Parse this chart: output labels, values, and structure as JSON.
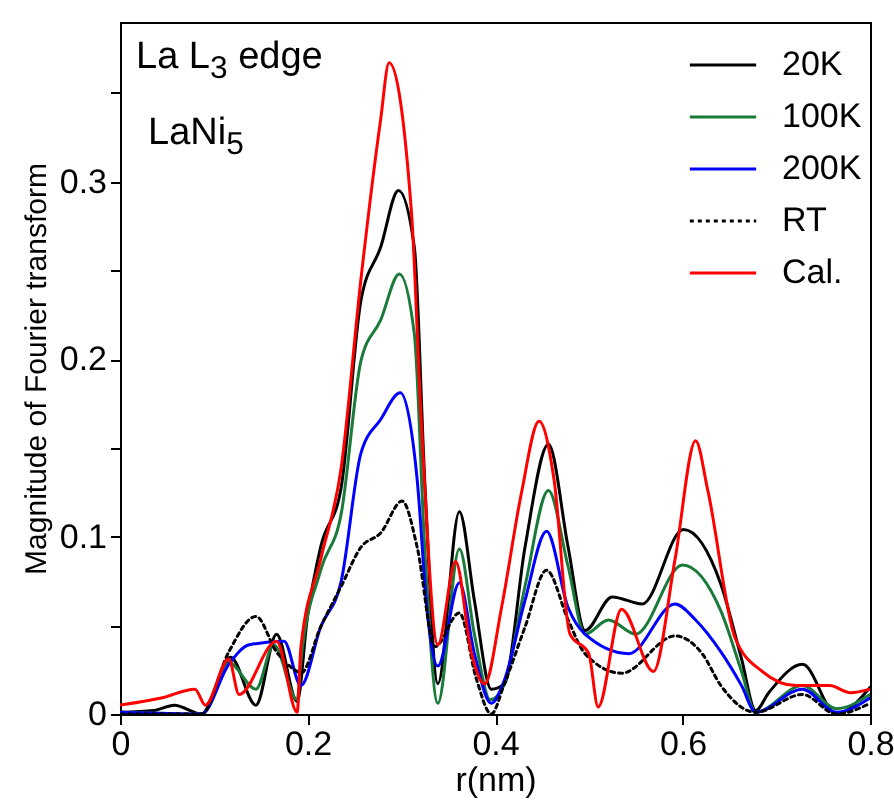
{
  "chart_data": {
    "type": "line",
    "xlabel": "r(nm)",
    "ylabel": "Magnitude of Fourier transform",
    "annotations": [
      "La L$_{3}$ edge",
      "LaNi$_{5}$"
    ],
    "xlim": [
      0,
      0.8
    ],
    "xticks": [
      0,
      0.2,
      0.4,
      0.6,
      0.8
    ],
    "ylim": [
      0,
      0.39
    ],
    "yticks": [
      0,
      {
        "value": 0.05,
        "label": null
      },
      0.1,
      {
        "value": 0.15,
        "label": null
      },
      0.2,
      {
        "value": 0.25,
        "label": null
      },
      0.3,
      {
        "value": 0.35,
        "label": null
      }
    ],
    "grid": false,
    "legend": "top right",
    "series": [
      {
        "name": "20K",
        "color": "#000000",
        "line_style": "solid",
        "x": [
          0,
          0.036,
          0.058,
          0.087,
          0.118,
          0.145,
          0.167,
          0.189,
          0.2,
          0.214,
          0.236,
          0.257,
          0.278,
          0.297,
          0.314,
          0.325,
          0.339,
          0.362,
          0.378,
          0.396,
          0.41,
          0.432,
          0.457,
          0.478,
          0.496,
          0.525,
          0.557,
          0.601,
          0.641,
          0.663,
          0.678,
          0.692,
          0.728,
          0.764,
          0.8
        ],
        "values": [
          0.001,
          0.002,
          0.005,
          0.0,
          0.032,
          0.005,
          0.045,
          0.007,
          0.055,
          0.094,
          0.128,
          0.233,
          0.263,
          0.295,
          0.263,
          0.132,
          0.017,
          0.114,
          0.064,
          0.014,
          0.017,
          0.094,
          0.152,
          0.094,
          0.047,
          0.066,
          0.062,
          0.104,
          0.073,
          0.031,
          0.002,
          0.012,
          0.028,
          0.0,
          0.015
        ]
      },
      {
        "name": "100K",
        "color": "#1a7a3a",
        "line_style": "solid",
        "x": [
          0,
          0.087,
          0.116,
          0.145,
          0.164,
          0.189,
          0.193,
          0.214,
          0.236,
          0.257,
          0.278,
          0.298,
          0.314,
          0.325,
          0.339,
          0.362,
          0.378,
          0.395,
          0.41,
          0.432,
          0.457,
          0.478,
          0.496,
          0.521,
          0.55,
          0.6,
          0.641,
          0.663,
          0.678,
          0.728,
          0.764,
          0.8
        ],
        "values": [
          0.001,
          0.0,
          0.029,
          0.014,
          0.039,
          0.008,
          0.03,
          0.081,
          0.113,
          0.199,
          0.222,
          0.248,
          0.214,
          0.094,
          0.006,
          0.093,
          0.045,
          0.008,
          0.017,
          0.072,
          0.126,
          0.083,
          0.045,
          0.053,
          0.045,
          0.084,
          0.058,
          0.024,
          0.001,
          0.016,
          0.003,
          0.011
        ]
      },
      {
        "name": "200K",
        "color": "#0000ff",
        "line_style": "solid",
        "x": [
          0,
          0.087,
          0.116,
          0.138,
          0.175,
          0.193,
          0.214,
          0.236,
          0.257,
          0.278,
          0.299,
          0.317,
          0.328,
          0.339,
          0.362,
          0.378,
          0.396,
          0.41,
          0.432,
          0.455,
          0.478,
          0.496,
          0.543,
          0.592,
          0.614,
          0.641,
          0.663,
          0.678,
          0.728,
          0.764,
          0.8
        ],
        "values": [
          0.001,
          0.0,
          0.028,
          0.039,
          0.041,
          0.016,
          0.049,
          0.075,
          0.147,
          0.166,
          0.181,
          0.132,
          0.056,
          0.027,
          0.074,
          0.034,
          0.006,
          0.019,
          0.064,
          0.103,
          0.06,
          0.045,
          0.034,
          0.062,
          0.053,
          0.035,
          0.016,
          0.001,
          0.014,
          0.001,
          0.009
        ]
      },
      {
        "name": "RT",
        "color": "#000000",
        "line_style": "dotted",
        "x": [
          0,
          0.036,
          0.087,
          0.116,
          0.145,
          0.167,
          0.189,
          0.193,
          0.214,
          0.236,
          0.257,
          0.278,
          0.301,
          0.317,
          0.336,
          0.362,
          0.38,
          0.396,
          0.41,
          0.432,
          0.455,
          0.478,
          0.496,
          0.535,
          0.592,
          0.621,
          0.641,
          0.678,
          0.728,
          0.764,
          0.8
        ],
        "values": [
          0.0,
          0.0,
          0.0,
          0.035,
          0.055,
          0.035,
          0.024,
          0.023,
          0.049,
          0.072,
          0.094,
          0.102,
          0.12,
          0.094,
          0.038,
          0.057,
          0.02,
          0.0,
          0.017,
          0.049,
          0.081,
          0.053,
          0.034,
          0.023,
          0.044,
          0.034,
          0.016,
          0.001,
          0.011,
          0.0,
          0.006
        ]
      },
      {
        "name": "Cal.",
        "color": "#ff0000",
        "line_style": "solid",
        "x": [
          0,
          0.044,
          0.08,
          0.091,
          0.116,
          0.127,
          0.167,
          0.189,
          0.193,
          0.214,
          0.236,
          0.257,
          0.278,
          0.287,
          0.311,
          0.321,
          0.339,
          0.358,
          0.375,
          0.389,
          0.407,
          0.428,
          0.447,
          0.463,
          0.48,
          0.5,
          0.51,
          0.535,
          0.569,
          0.592,
          0.614,
          0.627,
          0.656,
          0.685,
          0.721,
          0.757,
          0.779,
          0.8
        ],
        "values": [
          0.005,
          0.009,
          0.014,
          0.005,
          0.031,
          0.011,
          0.041,
          0.001,
          0.038,
          0.087,
          0.139,
          0.245,
          0.335,
          0.367,
          0.282,
          0.169,
          0.039,
          0.086,
          0.034,
          0.017,
          0.06,
          0.124,
          0.165,
          0.132,
          0.045,
          0.034,
          0.004,
          0.059,
          0.024,
          0.087,
          0.154,
          0.126,
          0.043,
          0.024,
          0.016,
          0.016,
          0.012,
          0.014
        ]
      }
    ]
  }
}
